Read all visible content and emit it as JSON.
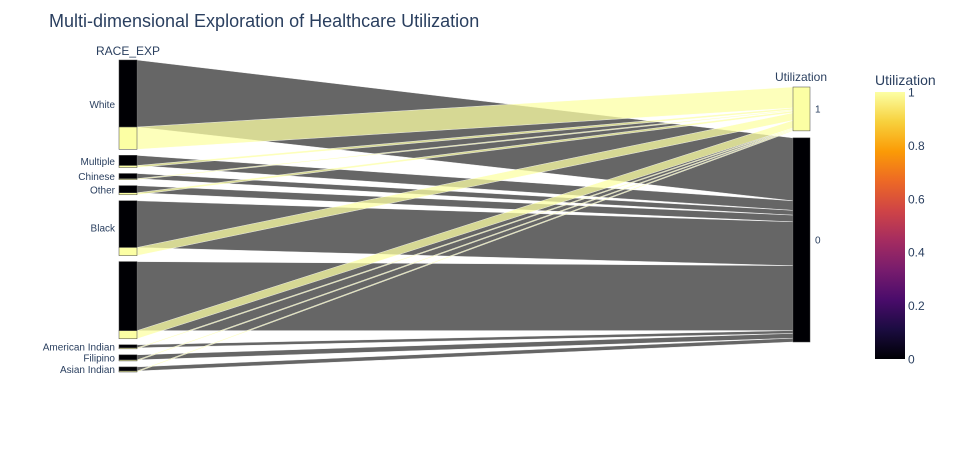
{
  "chart_data": {
    "type": "parallel-categories",
    "title": "Multi-dimensional Exploration of Healthcare Utilization",
    "dimensions": [
      {
        "label": "RACE_EXP",
        "categories": [
          {
            "name": "White",
            "count_0": 66,
            "count_1": 22
          },
          {
            "name": "Multiple",
            "count_0": 10,
            "count_1": 2
          },
          {
            "name": "Chinese",
            "count_0": 5,
            "count_1": 1
          },
          {
            "name": "Other",
            "count_0": 7,
            "count_1": 2
          },
          {
            "name": "Black",
            "count_0": 46,
            "count_1": 8
          },
          {
            "name": "",
            "count_0": 68,
            "count_1": 8
          },
          {
            "name": "American Indian",
            "count_0": 3,
            "count_1": 1
          },
          {
            "name": "Filipino",
            "count_0": 5,
            "count_1": 1
          },
          {
            "name": "Asian Indian",
            "count_0": 4,
            "count_1": 1
          }
        ]
      },
      {
        "label": "Utilization",
        "categories": [
          "1",
          "0"
        ]
      }
    ],
    "colorscale": {
      "name": "Inferno",
      "title": "Utilization",
      "range": [
        0,
        1
      ],
      "ticks": [
        "0",
        "0.2",
        "0.4",
        "0.6",
        "0.8",
        "1"
      ],
      "stops": [
        "#000004",
        "#1b0c41",
        "#4a0c6b",
        "#781c6d",
        "#a52c60",
        "#cf4446",
        "#ed6925",
        "#fb9b06",
        "#f7d13d",
        "#fcffa4"
      ]
    },
    "ribbon_colors": {
      "0": "#666666",
      "1": "#c6c78a"
    }
  }
}
